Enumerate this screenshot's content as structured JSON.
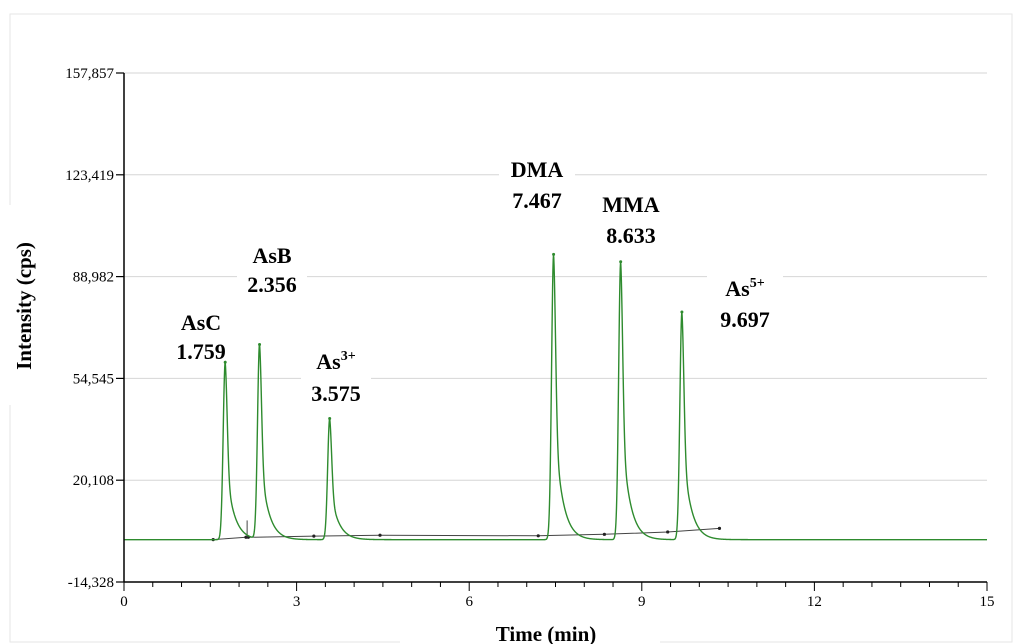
{
  "chart_data": {
    "type": "line",
    "xlabel": "Time (min)",
    "ylabel": "Intensity (cps)",
    "xlim": [
      0,
      15
    ],
    "ylim": [
      -14328,
      157857
    ],
    "xticks": [
      "0",
      "3",
      "6",
      "9",
      "12",
      "15"
    ],
    "yticks": [
      "157,857",
      "123,419",
      "88,982",
      "54,545",
      "20,108",
      "-14,328"
    ],
    "grid": "horizontal",
    "line_color": "#2e8b2e",
    "baseline_color": "#444444",
    "baseline": 0,
    "peaks": [
      {
        "name": "AsC",
        "sup": "",
        "time_label": "1.759",
        "time": 1.759,
        "height": 60000
      },
      {
        "name": "AsB",
        "sup": "",
        "time_label": "2.356",
        "time": 2.356,
        "height": 66000
      },
      {
        "name": "As",
        "sup": "3+",
        "time_label": "3.575",
        "time": 3.575,
        "height": 41000
      },
      {
        "name": "DMA",
        "sup": "",
        "time_label": "7.467",
        "time": 7.467,
        "height": 96500
      },
      {
        "name": "MMA",
        "sup": "",
        "time_label": "8.633",
        "time": 8.633,
        "height": 94000
      },
      {
        "name": "As",
        "sup": "5+",
        "time_label": "9.697",
        "time": 9.697,
        "height": 77000
      }
    ]
  }
}
